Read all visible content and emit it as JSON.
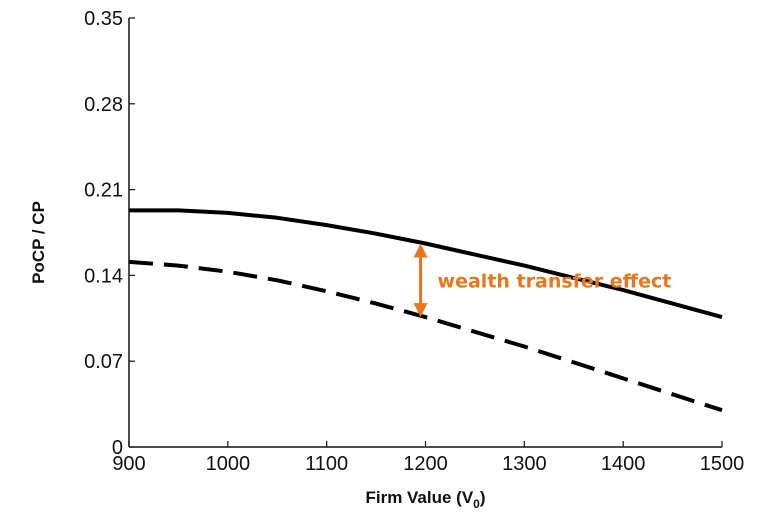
{
  "chart_data": {
    "type": "line",
    "xlabel": "Firm Value (V",
    "xlabel_subscript": "0",
    "xlabel_close": ")",
    "ylabel": "PoCP / CP",
    "xlim": [
      900,
      1500
    ],
    "ylim": [
      0,
      0.35
    ],
    "xticks": [
      "900",
      "1000",
      "1100",
      "1200",
      "1300",
      "1400",
      "1500"
    ],
    "yticks": [
      "0",
      "0.07",
      "0.14",
      "0.21",
      "0.28",
      "0.35"
    ],
    "grid": false,
    "series": [
      {
        "style": "solid",
        "x": [
          900,
          950,
          1000,
          1050,
          1100,
          1150,
          1200,
          1250,
          1300,
          1350,
          1400,
          1450,
          1500
        ],
        "values": [
          0.193,
          0.193,
          0.191,
          0.187,
          0.181,
          0.174,
          0.166,
          0.157,
          0.148,
          0.138,
          0.128,
          0.117,
          0.106
        ]
      },
      {
        "style": "dashed",
        "x": [
          900,
          950,
          1000,
          1050,
          1100,
          1150,
          1200,
          1250,
          1300,
          1350,
          1400,
          1450,
          1500
        ],
        "values": [
          0.151,
          0.148,
          0.143,
          0.136,
          0.127,
          0.117,
          0.106,
          0.094,
          0.082,
          0.069,
          0.056,
          0.043,
          0.03
        ]
      }
    ],
    "annotation": {
      "text": "wealth transfer effect",
      "x": 1195,
      "y_top": 0.166,
      "y_bottom": 0.106,
      "color": "#E8761E"
    }
  }
}
